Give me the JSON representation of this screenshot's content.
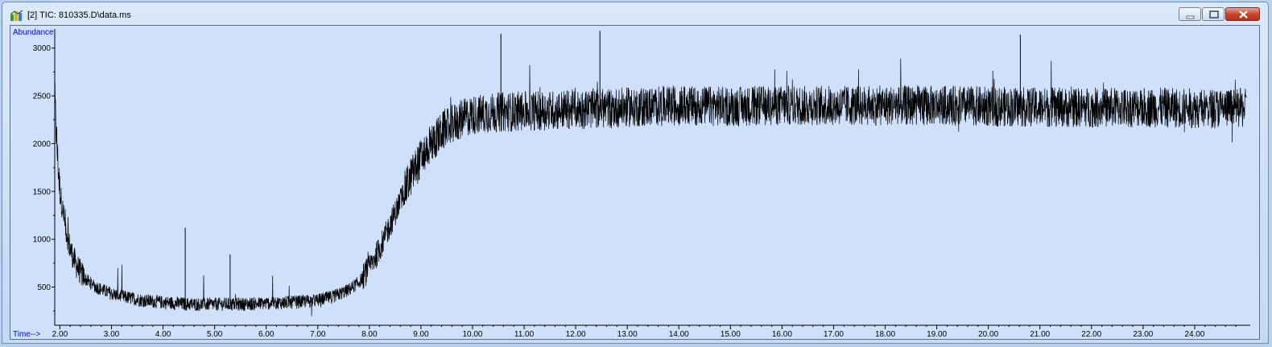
{
  "window": {
    "title": "[2] TIC: 810335.D\\data.ms",
    "controls": [
      "minimize",
      "maximize",
      "close"
    ],
    "icon": "chromatogram-app-icon"
  },
  "colors": {
    "plot_bg": "#cfe0fa",
    "axis_label": "#0000ff",
    "trace": "#000000"
  },
  "chart_data": {
    "type": "line",
    "ylabel": "Abundance",
    "xlabel": "Time-->",
    "xlim": [
      1.9,
      25.0
    ],
    "ylim": [
      100,
      3200
    ],
    "yticks": [
      500,
      1000,
      1500,
      2000,
      2500,
      3000
    ],
    "xticks": [
      2.0,
      3.0,
      4.0,
      5.0,
      6.0,
      7.0,
      8.0,
      9.0,
      10.0,
      11.0,
      12.0,
      13.0,
      14.0,
      15.0,
      16.0,
      17.0,
      18.0,
      19.0,
      20.0,
      21.0,
      22.0,
      23.0,
      24.0
    ],
    "xtick_labels": [
      "2.00",
      "3.00",
      "4.00",
      "5.00",
      "6.00",
      "7.00",
      "8.00",
      "9.00",
      "10.00",
      "11.00",
      "12.00",
      "13.00",
      "14.00",
      "15.00",
      "16.00",
      "17.00",
      "18.00",
      "19.00",
      "20.00",
      "21.00",
      "22.00",
      "23.00",
      "24.00"
    ],
    "ytick_labels": [
      "500",
      "1000",
      "1500",
      "2000",
      "2500",
      "3000"
    ],
    "series": [
      {
        "x": [
          1.9,
          1.95,
          2.0,
          2.1,
          2.2,
          2.3,
          2.4,
          2.5,
          2.7,
          3.0,
          3.3,
          3.6,
          4.0,
          4.5,
          5.0,
          5.5,
          6.0,
          6.5,
          7.0,
          7.3,
          7.6,
          7.8,
          8.0,
          8.2,
          8.4,
          8.6,
          8.8,
          9.0,
          9.2,
          9.4,
          9.6,
          9.8,
          10.0,
          10.5,
          11.0,
          12.0,
          13.0,
          14.0,
          15.0,
          16.0,
          17.0,
          18.0,
          19.0,
          20.0,
          21.0,
          22.0,
          23.0,
          24.0,
          25.0
        ],
        "y": [
          2450,
          1900,
          1500,
          1150,
          900,
          750,
          650,
          580,
          500,
          430,
          390,
          360,
          340,
          320,
          320,
          320,
          330,
          340,
          360,
          400,
          470,
          550,
          700,
          900,
          1150,
          1400,
          1650,
          1850,
          2000,
          2120,
          2200,
          2260,
          2300,
          2330,
          2340,
          2360,
          2380,
          2400,
          2390,
          2400,
          2400,
          2400,
          2400,
          2390,
          2380,
          2380,
          2380,
          2370,
          2370
        ]
      }
    ],
    "spikes": [
      {
        "x": 4.43,
        "y": 1120
      },
      {
        "x": 5.3,
        "y": 840
      },
      {
        "x": 10.55,
        "y": 3150
      },
      {
        "x": 12.47,
        "y": 3180
      },
      {
        "x": 20.62,
        "y": 3140
      }
    ]
  }
}
